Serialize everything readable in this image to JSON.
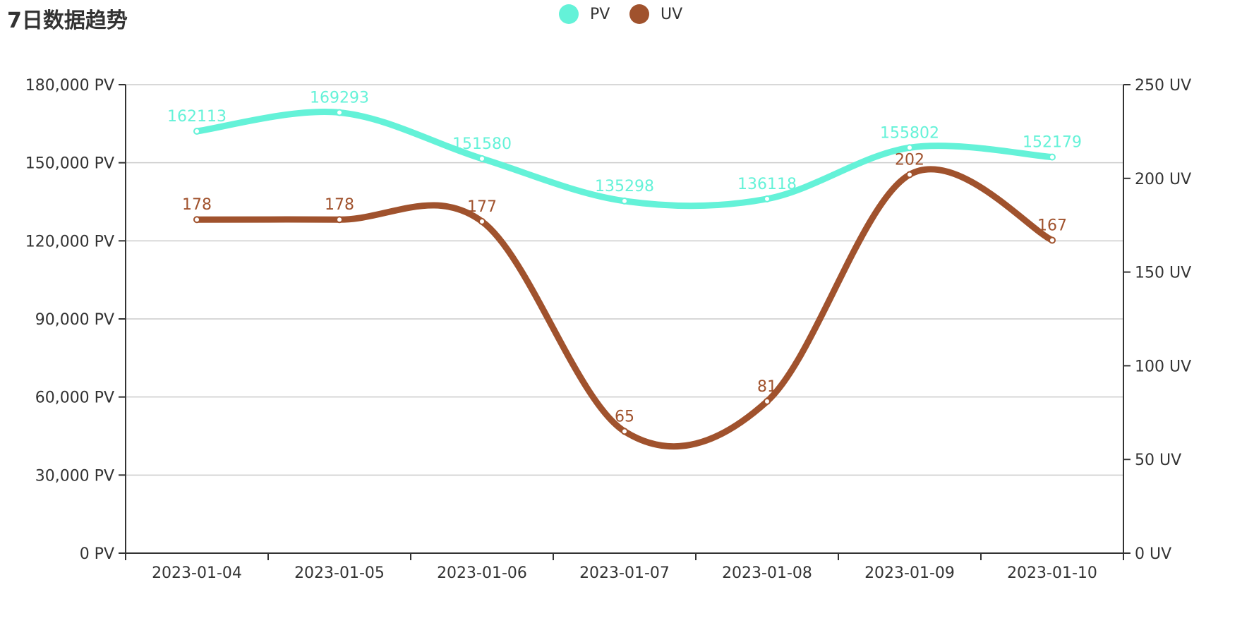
{
  "title": "7日数据趋势",
  "legend": [
    {
      "name": "PV",
      "color": "#64f2d8"
    },
    {
      "name": "UV",
      "color": "#a0522d"
    }
  ],
  "chart_data": {
    "type": "line",
    "title": "7日数据趋势",
    "categories": [
      "2023-01-04",
      "2023-01-05",
      "2023-01-06",
      "2023-01-07",
      "2023-01-08",
      "2023-01-09",
      "2023-01-10"
    ],
    "y_left": {
      "min": 0,
      "max": 180000,
      "ticks": [
        0,
        30000,
        60000,
        90000,
        120000,
        150000,
        180000
      ],
      "tick_labels": [
        "0 PV",
        "30,000 PV",
        "60,000 PV",
        "90,000 PV",
        "120,000 PV",
        "150,000 PV",
        "180,000 PV"
      ]
    },
    "y_right": {
      "min": 0,
      "max": 250,
      "ticks": [
        0,
        50,
        100,
        150,
        200,
        250
      ],
      "tick_labels": [
        "0 UV",
        "50 UV",
        "100 UV",
        "150 UV",
        "200 UV",
        "250 UV"
      ]
    },
    "series": [
      {
        "name": "PV",
        "axis": "left",
        "color": "#64f2d8",
        "values": [
          162113,
          169293,
          151580,
          135298,
          136118,
          155802,
          152179
        ],
        "smooth": true
      },
      {
        "name": "UV",
        "axis": "right",
        "color": "#a0522d",
        "values": [
          178,
          178,
          177,
          65,
          81,
          202,
          167
        ],
        "smooth": true
      }
    ],
    "grid": true,
    "legend_position": "top-center"
  }
}
